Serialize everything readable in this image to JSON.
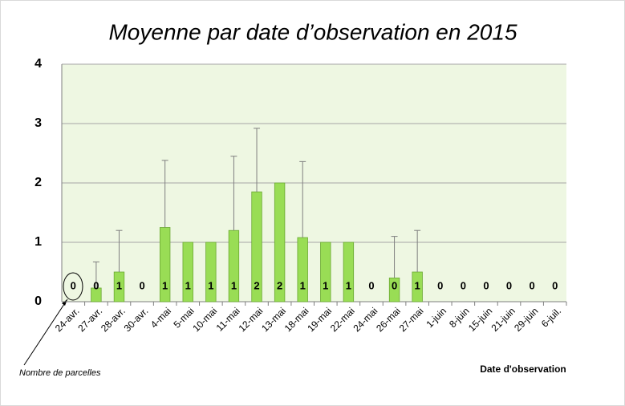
{
  "chart_data": {
    "type": "bar",
    "title": "Moyenne par date d’observation en 2015",
    "x_label": "Date d'observation",
    "annotation": "Nombre de parcelles",
    "categories": [
      "24-avr.",
      "27-avr.",
      "28-avr.",
      "30-avr.",
      "4-mai",
      "5-mai",
      "10-mai",
      "11-mai",
      "12-mai",
      "13-mai",
      "18-mai",
      "19-mai",
      "22-mai",
      "24-mai",
      "26-mai",
      "27-mai",
      "1-juin",
      "8-juin",
      "15-juin",
      "21-juin",
      "29-juin",
      "6-juil."
    ],
    "values": [
      0,
      0.23,
      0.5,
      0,
      1.25,
      1,
      1,
      1.2,
      1.85,
      2,
      1.08,
      1,
      1,
      0,
      0.4,
      0.5,
      0,
      0,
      0,
      0,
      0,
      0
    ],
    "errors": [
      0,
      0.44,
      0.7,
      0,
      1.13,
      0,
      0,
      1.25,
      1.07,
      0,
      1.28,
      0,
      0,
      0,
      0.7,
      0.7,
      0,
      0,
      0,
      0,
      0,
      0
    ],
    "counts": [
      0,
      0,
      1,
      0,
      1,
      1,
      1,
      1,
      2,
      2,
      1,
      1,
      1,
      0,
      0,
      1,
      0,
      0,
      0,
      0,
      0,
      0
    ],
    "color": "#99dd55",
    "ylim": [
      0,
      4
    ],
    "yticks": [
      0,
      1,
      2,
      3,
      4
    ],
    "grid": true
  }
}
